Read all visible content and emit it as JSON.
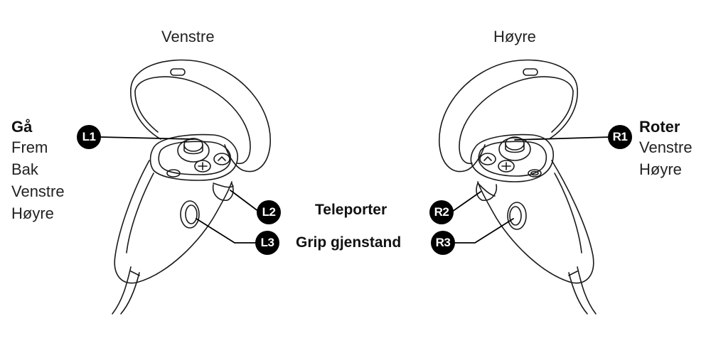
{
  "titles": {
    "left": "Venstre",
    "right": "Høyre"
  },
  "left_panel": {
    "heading": "Gå",
    "items": [
      "Frem",
      "Bak",
      "Venstre",
      "Høyre"
    ]
  },
  "right_panel": {
    "heading": "Roter",
    "items": [
      "Venstre",
      "Høyre"
    ]
  },
  "actions": {
    "trigger": "Teleporter",
    "grip": "Grip gjenstand"
  },
  "badges": {
    "l1": "L1",
    "l2": "L2",
    "l3": "L3",
    "r1": "R1",
    "r2": "R2",
    "r3": "R3"
  }
}
